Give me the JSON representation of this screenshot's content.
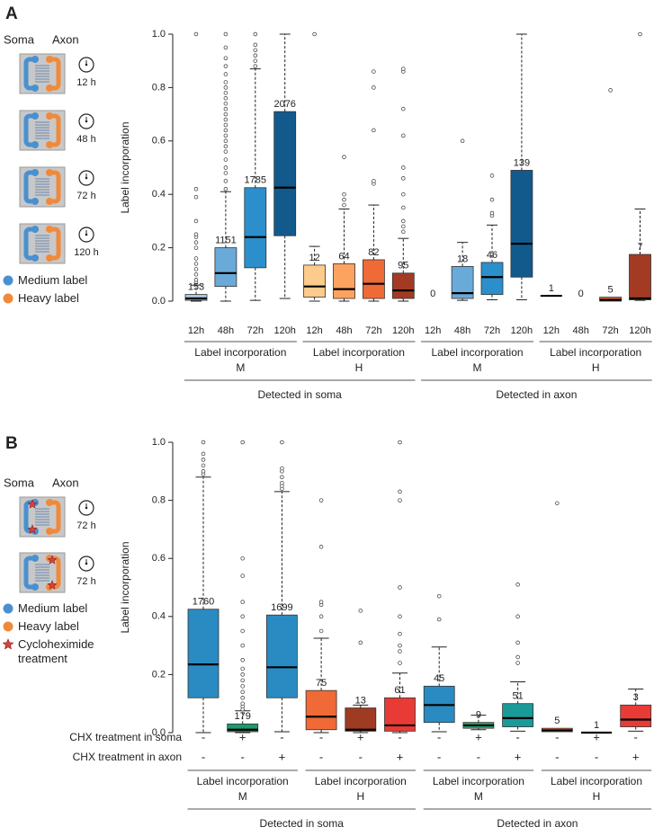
{
  "panels": [
    {
      "letter": "A",
      "soma": "Soma",
      "axon": "Axon",
      "times": [
        "12 h",
        "48 h",
        "72 h",
        "120 h"
      ],
      "legend": [
        {
          "label": "Medium label",
          "color": "#4a90d0"
        },
        {
          "label": "Heavy label",
          "color": "#ef8a3c"
        }
      ]
    },
    {
      "letter": "B",
      "soma": "Soma",
      "axon": "Axon",
      "times": [
        "72 h",
        "72 h"
      ],
      "legend": [
        {
          "label": "Medium label",
          "color": "#4a90d0"
        },
        {
          "label": "Heavy label",
          "color": "#ef8a3c"
        },
        {
          "label": "Cycloheximide treatment",
          "color": "#d9413b"
        }
      ]
    }
  ],
  "chart_data": [
    {
      "type": "boxplot",
      "ylabel": "Label incorporation",
      "ylim": [
        0,
        1
      ],
      "yticks": [
        {
          "value": 0,
          "label": "0.0"
        },
        0.2,
        0.4,
        0.6,
        0.8,
        {
          "value": 1,
          "label": "1.0"
        }
      ],
      "categories": [
        "12h",
        "48h",
        "72h",
        "120h",
        "12h",
        "48h",
        "72h",
        "120h",
        "12h",
        "48h",
        "72h",
        "120h",
        "12h",
        "48h",
        "72h",
        "120h"
      ],
      "groups": [
        {
          "label": "Label incorporation",
          "sub": "M"
        },
        {
          "label": "Label incorporation",
          "sub": "H"
        },
        {
          "label": "Label incorporation",
          "sub": "M"
        },
        {
          "label": "Label incorporation",
          "sub": "H"
        }
      ],
      "super_groups": [
        "Detected in soma",
        "Detected in axon"
      ],
      "boxes": [
        {
          "whisker_low": 0,
          "q1": 0.003,
          "median": 0.01,
          "q3": 0.025,
          "whisker_high": 0.06,
          "n": 153,
          "color": "#a9c6e6",
          "outliers": [
            0.07,
            0.08,
            0.1,
            0.12,
            0.14,
            0.16,
            0.2,
            0.22,
            0.24,
            0.25,
            0.3,
            0.39,
            0.42,
            1.0
          ]
        },
        {
          "whisker_low": 0,
          "q1": 0.055,
          "median": 0.105,
          "q3": 0.2,
          "whisker_high": 0.41,
          "n": 1151,
          "color": "#6aaad8",
          "outliers": [
            0.42,
            0.45,
            0.48,
            0.5,
            0.53,
            0.56,
            0.58,
            0.6,
            0.62,
            0.64,
            0.66,
            0.68,
            0.7,
            0.72,
            0.74,
            0.76,
            0.78,
            0.8,
            0.82,
            0.85,
            0.88,
            0.91,
            0.95,
            1.0
          ]
        },
        {
          "whisker_low": 0.003,
          "q1": 0.125,
          "median": 0.24,
          "q3": 0.425,
          "whisker_high": 0.87,
          "n": 1785,
          "color": "#2b8fcb",
          "outliers": [
            0.88,
            0.9,
            0.92,
            0.94,
            0.96,
            1.0
          ]
        },
        {
          "whisker_low": 0.01,
          "q1": 0.245,
          "median": 0.425,
          "q3": 0.71,
          "whisker_high": 1.0,
          "n": 2076,
          "color": "#135a8c",
          "outliers": []
        },
        {
          "whisker_low": 0,
          "q1": 0.015,
          "median": 0.055,
          "q3": 0.135,
          "whisker_high": 0.205,
          "n": 12,
          "color": "#fdcb8c",
          "outliers": [
            1.0
          ]
        },
        {
          "whisker_low": 0,
          "q1": 0.01,
          "median": 0.045,
          "q3": 0.14,
          "whisker_high": 0.345,
          "n": 64,
          "color": "#fca35f",
          "outliers": [
            0.36,
            0.38,
            0.4,
            0.54
          ]
        },
        {
          "whisker_low": 0,
          "q1": 0.01,
          "median": 0.065,
          "q3": 0.155,
          "whisker_high": 0.36,
          "n": 82,
          "color": "#ef6a36",
          "outliers": [
            0.44,
            0.45,
            0.64,
            0.8,
            0.86
          ]
        },
        {
          "whisker_low": 0,
          "q1": 0.01,
          "median": 0.04,
          "q3": 0.105,
          "whisker_high": 0.235,
          "n": 95,
          "color": "#a33b24",
          "outliers": [
            0.26,
            0.28,
            0.3,
            0.35,
            0.4,
            0.46,
            0.5,
            0.62,
            0.72,
            0.86,
            0.87
          ]
        },
        {
          "whisker_low": null,
          "q1": null,
          "median": null,
          "q3": null,
          "whisker_high": null,
          "n": 0,
          "color": null,
          "outliers": []
        },
        {
          "whisker_low": 0.003,
          "q1": 0.01,
          "median": 0.03,
          "q3": 0.13,
          "whisker_high": 0.22,
          "n": 18,
          "color": "#6aaad8",
          "outliers": [
            0.6
          ]
        },
        {
          "whisker_low": 0.005,
          "q1": 0.025,
          "median": 0.09,
          "q3": 0.145,
          "whisker_high": 0.285,
          "n": 46,
          "color": "#2b8fcb",
          "outliers": [
            0.32,
            0.33,
            0.38,
            0.47
          ]
        },
        {
          "whisker_low": 0.005,
          "q1": 0.09,
          "median": 0.215,
          "q3": 0.49,
          "whisker_high": 1.0,
          "n": 139,
          "color": "#135a8c",
          "outliers": []
        },
        {
          "whisker_low": null,
          "q1": null,
          "median": 0.02,
          "q3": null,
          "whisker_high": null,
          "n": 1,
          "color": null,
          "outliers": []
        },
        {
          "whisker_low": null,
          "q1": null,
          "median": null,
          "q3": null,
          "whisker_high": null,
          "n": 0,
          "color": null,
          "outliers": []
        },
        {
          "whisker_low": null,
          "q1": 0,
          "median": 0.005,
          "q3": 0.015,
          "whisker_high": null,
          "n": 5,
          "color": "#ef6a36",
          "outliers": [
            0.79
          ]
        },
        {
          "whisker_low": 0.003,
          "q1": 0.005,
          "median": 0.01,
          "q3": 0.175,
          "whisker_high": 0.345,
          "n": 7,
          "color": "#a33b24",
          "outliers": [
            1.0
          ]
        }
      ]
    },
    {
      "type": "boxplot",
      "ylabel": "Label incorporation",
      "ylim": [
        0,
        1
      ],
      "yticks": [
        {
          "value": 0,
          "label": "0.0"
        },
        0.2,
        0.4,
        0.6,
        0.8,
        {
          "value": 1,
          "label": "1.0"
        }
      ],
      "rows": [
        {
          "label": "CHX treatment in soma",
          "values": [
            "-",
            "+",
            "-",
            "-",
            "+",
            "-",
            "-",
            "+",
            "-",
            "-",
            "+",
            "-"
          ]
        },
        {
          "label": "CHX treatment in axon",
          "values": [
            "-",
            "-",
            "+",
            "-",
            "-",
            "+",
            "-",
            "-",
            "+",
            "-",
            "-",
            "+"
          ]
        }
      ],
      "groups": [
        {
          "label": "Label incorporation",
          "sub": "M"
        },
        {
          "label": "Label incorporation",
          "sub": "H"
        },
        {
          "label": "Label incorporation",
          "sub": "M"
        },
        {
          "label": "Label incorporation",
          "sub": "H"
        }
      ],
      "super_groups": [
        "Detected in soma",
        "Detected in axon"
      ],
      "boxes": [
        {
          "whisker_low": 0,
          "q1": 0.12,
          "median": 0.235,
          "q3": 0.425,
          "whisker_high": 0.88,
          "n": 1760,
          "color": "#2a8bc3",
          "outliers": [
            0.89,
            0.9,
            0.92,
            0.94,
            0.96,
            1.0
          ]
        },
        {
          "whisker_low": 0,
          "q1": 0.003,
          "median": 0.01,
          "q3": 0.03,
          "whisker_high": 0.075,
          "n": 179,
          "color": "#1e9a6d",
          "outliers": [
            0.08,
            0.09,
            0.1,
            0.12,
            0.14,
            0.16,
            0.18,
            0.2,
            0.22,
            0.25,
            0.3,
            0.35,
            0.4,
            0.45,
            0.54,
            0.6,
            1.0
          ]
        },
        {
          "whisker_low": 0.003,
          "q1": 0.12,
          "median": 0.225,
          "q3": 0.405,
          "whisker_high": 0.83,
          "n": 1699,
          "color": "#2a8bc3",
          "outliers": [
            0.84,
            0.85,
            0.86,
            0.88,
            0.9,
            0.91,
            1.0
          ]
        },
        {
          "whisker_low": 0,
          "q1": 0.01,
          "median": 0.055,
          "q3": 0.145,
          "whisker_high": 0.325,
          "n": 75,
          "color": "#ef6a36",
          "outliers": [
            0.35,
            0.4,
            0.44,
            0.45,
            0.64,
            0.8
          ]
        },
        {
          "whisker_low": 0,
          "q1": 0.005,
          "median": 0.01,
          "q3": 0.085,
          "whisker_high": 0.095,
          "n": 13,
          "color": "#9e3b22",
          "outliers": [
            0.31,
            0.42
          ]
        },
        {
          "whisker_low": 0,
          "q1": 0.005,
          "median": 0.025,
          "q3": 0.12,
          "whisker_high": 0.205,
          "n": 61,
          "color": "#e83b36",
          "outliers": [
            0.24,
            0.28,
            0.3,
            0.34,
            0.4,
            0.5,
            0.8,
            0.83,
            1.0
          ]
        },
        {
          "whisker_low": 0.003,
          "q1": 0.035,
          "median": 0.095,
          "q3": 0.16,
          "whisker_high": 0.295,
          "n": 45,
          "color": "#2a8bc3",
          "outliers": [
            0.39,
            0.47
          ]
        },
        {
          "whisker_low": 0.01,
          "q1": 0.015,
          "median": 0.025,
          "q3": 0.035,
          "whisker_high": 0.06,
          "n": 9,
          "color": "#2ba371",
          "outliers": []
        },
        {
          "whisker_low": 0.005,
          "q1": 0.02,
          "median": 0.05,
          "q3": 0.1,
          "whisker_high": 0.175,
          "n": 51,
          "color": "#1b9a9a",
          "outliers": [
            0.24,
            0.26,
            0.31,
            0.4,
            0.51
          ]
        },
        {
          "whisker_low": null,
          "q1": 0.003,
          "median": 0.008,
          "q3": 0.015,
          "whisker_high": null,
          "n": 5,
          "color": "#ef6a36",
          "outliers": [
            0.79
          ]
        },
        {
          "whisker_low": null,
          "q1": null,
          "median": 0.0,
          "q3": null,
          "whisker_high": null,
          "n": 1,
          "color": null,
          "outliers": []
        },
        {
          "whisker_low": 0.005,
          "q1": 0.02,
          "median": 0.045,
          "q3": 0.095,
          "whisker_high": 0.15,
          "n": 3,
          "color": "#e83b36",
          "outliers": []
        }
      ]
    }
  ]
}
